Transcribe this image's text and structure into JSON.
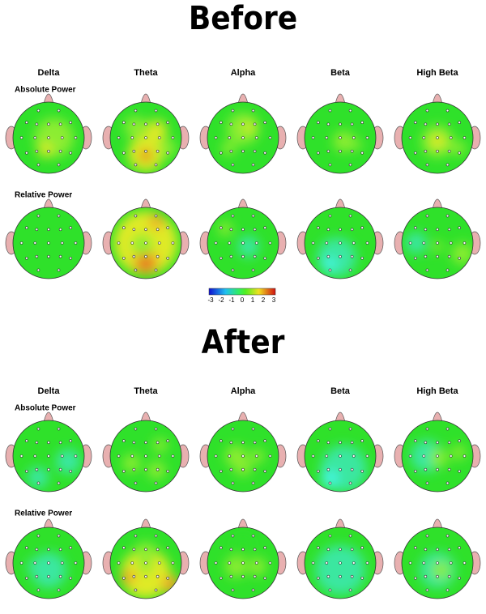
{
  "sections": [
    {
      "title": "Before",
      "bands": [
        "Delta",
        "Theta",
        "Alpha",
        "Beta",
        "High Beta"
      ],
      "rows": [
        "Absolute Power",
        "Relative Power"
      ]
    },
    {
      "title": "After",
      "bands": [
        "Delta",
        "Theta",
        "Alpha",
        "Beta",
        "High Beta"
      ],
      "rows": [
        "Absolute Power",
        "Relative Power"
      ]
    }
  ],
  "colorbar": {
    "ticks": [
      -3,
      -2,
      -1,
      0,
      1,
      2,
      3
    ]
  }
}
